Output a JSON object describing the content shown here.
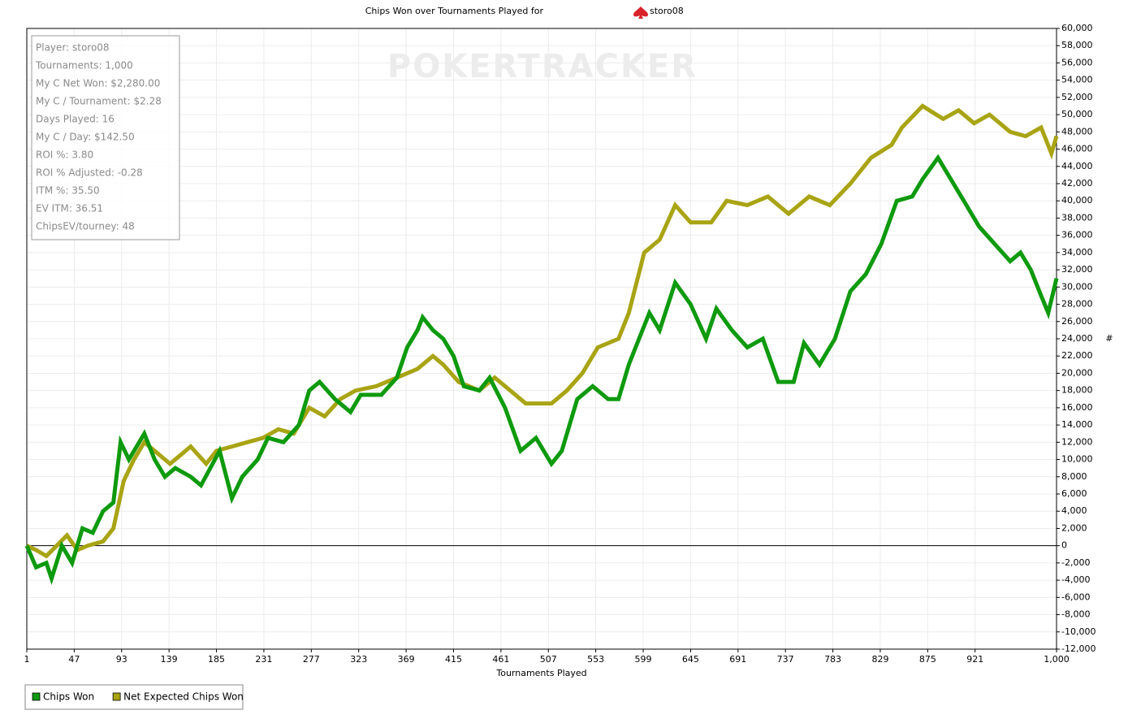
{
  "chart_data": {
    "type": "line",
    "title": "Chips Won over Tournaments Played for",
    "player": "storo08",
    "watermark": "POKERTRACKER",
    "x_label": "Tournaments Played",
    "y_label": "#",
    "stats": [
      "Player: storo08",
      "Tournaments: 1,000",
      "My C Net Won: $2,280.00",
      "My C / Tournament: $2.28",
      "Days Played: 16",
      "My C / Day: $142.50",
      "ROI %: 3.80",
      "ROI % Adjusted: -0.28",
      "ITM %: 35.50",
      "EV ITM: 36.51",
      "ChipsEV/tourney: 48"
    ],
    "xlim": [
      1,
      1000
    ],
    "xticks": [
      1,
      47,
      93,
      139,
      185,
      231,
      277,
      323,
      369,
      415,
      461,
      507,
      553,
      599,
      645,
      691,
      737,
      783,
      829,
      875,
      921,
      {
        "value": 1000,
        "label": "1,000"
      }
    ],
    "ylim": [
      -12000,
      60000
    ],
    "yticks": [
      {
        "value": -12000,
        "label": "-12,000"
      },
      {
        "value": -10000,
        "label": "-10,000"
      },
      {
        "value": -8000,
        "label": "-8,000"
      },
      {
        "value": -6000,
        "label": "-6,000"
      },
      {
        "value": -4000,
        "label": "-4,000"
      },
      {
        "value": -2000,
        "label": "-2,000"
      },
      0,
      {
        "value": 2000,
        "label": "2,000"
      },
      {
        "value": 4000,
        "label": "4,000"
      },
      {
        "value": 6000,
        "label": "6,000"
      },
      {
        "value": 8000,
        "label": "8,000"
      },
      {
        "value": 10000,
        "label": "10,000"
      },
      {
        "value": 12000,
        "label": "12,000"
      },
      {
        "value": 14000,
        "label": "14,000"
      },
      {
        "value": 16000,
        "label": "16,000"
      },
      {
        "value": 18000,
        "label": "18,000"
      },
      {
        "value": 20000,
        "label": "20,000"
      },
      {
        "value": 22000,
        "label": "22,000"
      },
      {
        "value": 24000,
        "label": "24,000"
      },
      {
        "value": 26000,
        "label": "26,000"
      },
      {
        "value": 28000,
        "label": "28,000"
      },
      {
        "value": 30000,
        "label": "30,000"
      },
      {
        "value": 32000,
        "label": "32,000"
      },
      {
        "value": 34000,
        "label": "34,000"
      },
      {
        "value": 36000,
        "label": "36,000"
      },
      {
        "value": 38000,
        "label": "38,000"
      },
      {
        "value": 40000,
        "label": "40,000"
      },
      {
        "value": 42000,
        "label": "42,000"
      },
      {
        "value": 44000,
        "label": "44,000"
      },
      {
        "value": 46000,
        "label": "46,000"
      },
      {
        "value": 48000,
        "label": "48,000"
      },
      {
        "value": 50000,
        "label": "50,000"
      },
      {
        "value": 52000,
        "label": "52,000"
      },
      {
        "value": 54000,
        "label": "54,000"
      },
      {
        "value": 56000,
        "label": "56,000"
      },
      {
        "value": 58000,
        "label": "58,000"
      },
      {
        "value": 60000,
        "label": "60,000"
      }
    ],
    "grid": true,
    "legend": "bottom-left",
    "series": [
      {
        "name": "Chips Won",
        "color": "#0e9a0e",
        "x": [
          1,
          10,
          20,
          25,
          35,
          45,
          55,
          65,
          75,
          85,
          92,
          100,
          115,
          125,
          135,
          145,
          160,
          170,
          188,
          200,
          210,
          225,
          235,
          250,
          265,
          275,
          285,
          300,
          315,
          325,
          345,
          360,
          370,
          380,
          385,
          395,
          405,
          415,
          425,
          440,
          450,
          465,
          480,
          495,
          510,
          520,
          535,
          550,
          565,
          575,
          585,
          595,
          605,
          615,
          630,
          645,
          660,
          670,
          685,
          700,
          715,
          730,
          745,
          755,
          770,
          785,
          800,
          815,
          830,
          845,
          860,
          870,
          885,
          895,
          910,
          925,
          940,
          955,
          965,
          975,
          985,
          992,
          1000
        ],
        "values": [
          0,
          -2500,
          -2000,
          -3800,
          0,
          -2000,
          2000,
          1500,
          4000,
          5000,
          12000,
          10000,
          13000,
          10000,
          8000,
          9000,
          8000,
          7000,
          11000,
          5500,
          8000,
          10000,
          12500,
          12000,
          14000,
          18000,
          19000,
          17000,
          15500,
          17500,
          17500,
          19500,
          23000,
          25000,
          26500,
          25000,
          24000,
          22000,
          18500,
          18000,
          19500,
          16000,
          11000,
          12500,
          9500,
          11000,
          17000,
          18500,
          17000,
          17000,
          21000,
          24000,
          27000,
          25000,
          30500,
          28000,
          24000,
          27500,
          25000,
          23000,
          24000,
          19000,
          19000,
          23500,
          21000,
          24000,
          29500,
          31500,
          35000,
          40000,
          40500,
          42500,
          45000,
          43000,
          40000,
          37000,
          35000,
          33000,
          34000,
          32000,
          29000,
          27000,
          31000
        ]
      },
      {
        "name": "Net Expected Chips Won",
        "color": "#a8a414",
        "x": [
          1,
          10,
          20,
          30,
          40,
          50,
          60,
          75,
          85,
          95,
          105,
          115,
          125,
          140,
          150,
          160,
          175,
          185,
          200,
          215,
          230,
          245,
          260,
          275,
          290,
          305,
          320,
          340,
          360,
          380,
          395,
          405,
          420,
          440,
          455,
          470,
          485,
          500,
          510,
          525,
          540,
          555,
          575,
          585,
          600,
          615,
          630,
          645,
          665,
          680,
          700,
          720,
          740,
          760,
          780,
          800,
          820,
          840,
          850,
          870,
          890,
          905,
          920,
          935,
          955,
          970,
          985,
          995,
          1000
        ],
        "values": [
          0,
          -500,
          -1200,
          0,
          1200,
          -500,
          0,
          500,
          2000,
          7500,
          10000,
          12000,
          11000,
          9500,
          10500,
          11500,
          9500,
          11000,
          11500,
          12000,
          12500,
          13500,
          13000,
          16000,
          15000,
          17000,
          18000,
          18500,
          19500,
          20500,
          22000,
          21000,
          19000,
          18000,
          19500,
          18000,
          16500,
          16500,
          16500,
          18000,
          20000,
          23000,
          24000,
          27000,
          34000,
          35500,
          39500,
          37500,
          37500,
          40000,
          39500,
          40500,
          38500,
          40500,
          39500,
          42000,
          45000,
          46500,
          48500,
          51000,
          49500,
          50500,
          49000,
          50000,
          48000,
          47500,
          48500,
          45500,
          47500
        ]
      }
    ]
  }
}
